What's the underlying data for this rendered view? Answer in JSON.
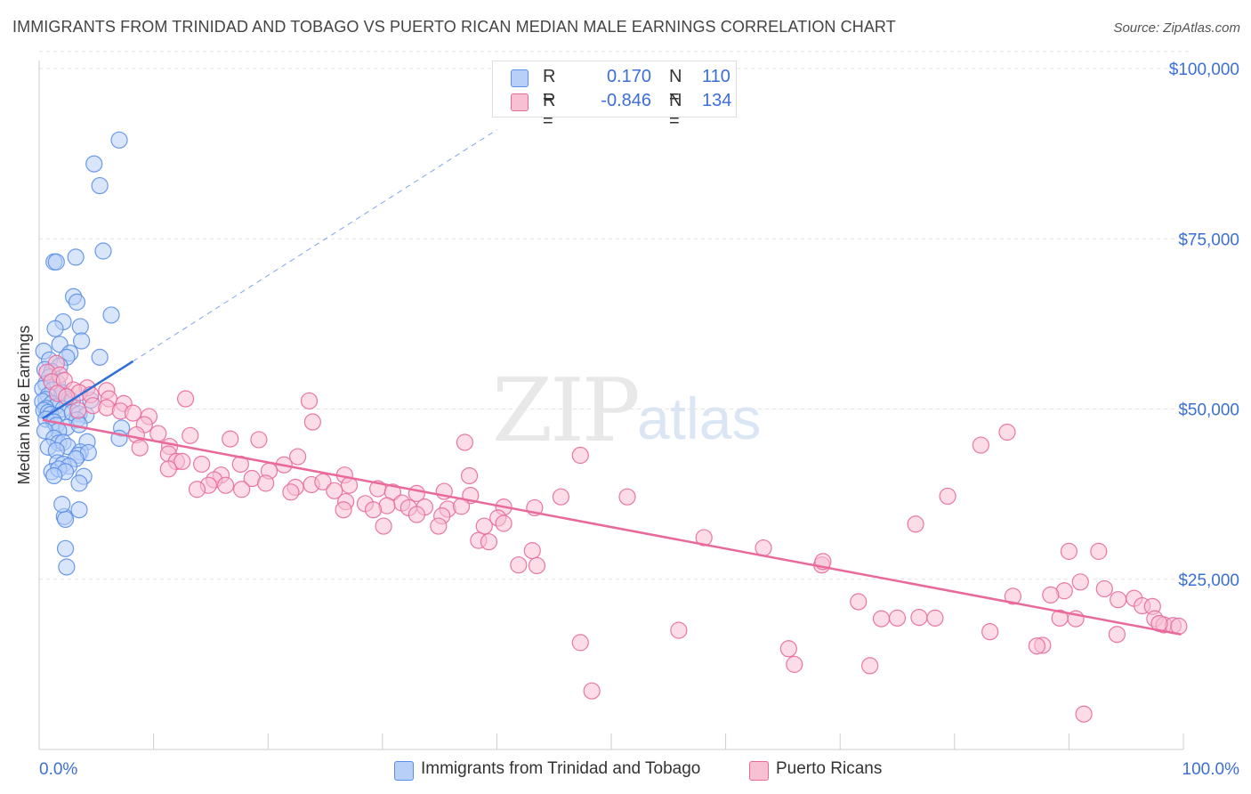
{
  "title": "IMMIGRANTS FROM TRINIDAD AND TOBAGO VS PUERTO RICAN MEDIAN MALE EARNINGS CORRELATION CHART",
  "source": "Source: ZipAtlas.com",
  "watermark": {
    "zip": "ZIP",
    "atlas": "atlas"
  },
  "colors": {
    "blue": "#5b8ee8",
    "blue_fill": "#b8d0f7",
    "pink": "#e8699a",
    "pink_fill": "#f7c0d3",
    "axis_label": "#3b6fd8"
  },
  "legend": {
    "rows": [
      {
        "r_label": "R =",
        "r_value": "0.170",
        "n_label": "N =",
        "n_value": "110"
      },
      {
        "r_label": "R =",
        "r_value": "-0.846",
        "n_label": "N =",
        "n_value": "134"
      }
    ]
  },
  "bottom_legend": [
    {
      "label": "Immigrants from Trinidad and Tobago"
    },
    {
      "label": "Puerto Ricans"
    }
  ],
  "chart_data": {
    "type": "scatter",
    "title": "IMMIGRANTS FROM TRINIDAD AND TOBAGO VS PUERTO RICAN MEDIAN MALE EARNINGS CORRELATION CHART",
    "xlabel": "",
    "ylabel": "Median Male Earnings",
    "xlim": [
      0,
      100
    ],
    "ylim": [
      0,
      105000
    ],
    "x_tick_labels": [
      "0.0%",
      "100.0%"
    ],
    "y_ticks": [
      25000,
      50000,
      75000,
      100000
    ],
    "y_tick_labels": [
      "$25,000",
      "$50,000",
      "$75,000",
      "$100,000"
    ],
    "grid": true,
    "series": [
      {
        "name": "Immigrants from Trinidad and Tobago",
        "color": "#5b8ee8",
        "trend": {
          "x": [
            0.3,
            8.2
          ],
          "y": [
            48600,
            57000
          ],
          "extended_to": [
            40,
            91000
          ]
        },
        "points": [
          [
            7.0,
            89500
          ],
          [
            4.8,
            86000
          ],
          [
            5.3,
            82800
          ],
          [
            5.6,
            73200
          ],
          [
            3.2,
            72300
          ],
          [
            1.3,
            71600
          ],
          [
            1.5,
            71600
          ],
          [
            3.0,
            66500
          ],
          [
            3.3,
            65700
          ],
          [
            6.3,
            63800
          ],
          [
            2.1,
            62800
          ],
          [
            1.4,
            61800
          ],
          [
            3.6,
            62100
          ],
          [
            3.7,
            60000
          ],
          [
            1.8,
            59500
          ],
          [
            0.4,
            58500
          ],
          [
            0.9,
            57200
          ],
          [
            2.7,
            58200
          ],
          [
            2.4,
            57600
          ],
          [
            5.3,
            57600
          ],
          [
            1.8,
            56300
          ],
          [
            0.5,
            55800
          ],
          [
            1.1,
            55500
          ],
          [
            0.9,
            54700
          ],
          [
            1.6,
            53800
          ],
          [
            0.6,
            53700
          ],
          [
            0.3,
            53000
          ],
          [
            1.2,
            52800
          ],
          [
            2.0,
            52400
          ],
          [
            0.8,
            52000
          ],
          [
            0.6,
            51400
          ],
          [
            0.3,
            51100
          ],
          [
            2.6,
            51500
          ],
          [
            2.9,
            51200
          ],
          [
            4.5,
            51300
          ],
          [
            1.1,
            50800
          ],
          [
            1.4,
            50300
          ],
          [
            0.6,
            50100
          ],
          [
            2.1,
            50000
          ],
          [
            0.4,
            49800
          ],
          [
            0.8,
            49500
          ],
          [
            1.0,
            49200
          ],
          [
            1.6,
            49000
          ],
          [
            2.9,
            49500
          ],
          [
            3.5,
            49300
          ],
          [
            4.1,
            49100
          ],
          [
            0.6,
            48500
          ],
          [
            1.3,
            48100
          ],
          [
            3.3,
            48400
          ],
          [
            1.5,
            47600
          ],
          [
            2.4,
            47300
          ],
          [
            1.7,
            46800
          ],
          [
            0.5,
            46800
          ],
          [
            7.2,
            47200
          ],
          [
            3.5,
            47700
          ],
          [
            7.0,
            45700
          ],
          [
            1.3,
            45700
          ],
          [
            1.7,
            45000
          ],
          [
            2.1,
            45100
          ],
          [
            4.2,
            45200
          ],
          [
            2.5,
            44500
          ],
          [
            0.8,
            44400
          ],
          [
            1.5,
            43900
          ],
          [
            3.6,
            43700
          ],
          [
            3.4,
            43200
          ],
          [
            4.3,
            43600
          ],
          [
            3.2,
            42700
          ],
          [
            1.6,
            42100
          ],
          [
            2.1,
            41900
          ],
          [
            2.6,
            41600
          ],
          [
            1.1,
            40800
          ],
          [
            1.7,
            41200
          ],
          [
            2.3,
            40800
          ],
          [
            1.3,
            40200
          ],
          [
            3.9,
            40100
          ],
          [
            3.5,
            39100
          ],
          [
            3.5,
            35200
          ],
          [
            2.2,
            34200
          ],
          [
            2.3,
            33800
          ],
          [
            2.0,
            36000
          ],
          [
            2.3,
            29500
          ],
          [
            2.4,
            26800
          ]
        ]
      },
      {
        "name": "Puerto Ricans",
        "color": "#e8699a",
        "trend": {
          "x": [
            0.3,
            99.8
          ],
          "y": [
            48400,
            16900
          ]
        },
        "points": [
          [
            1.5,
            56700
          ],
          [
            0.7,
            55400
          ],
          [
            1.8,
            55000
          ],
          [
            1.1,
            54000
          ],
          [
            2.2,
            54200
          ],
          [
            4.2,
            53100
          ],
          [
            3.0,
            52800
          ],
          [
            1.6,
            52300
          ],
          [
            5.9,
            52700
          ],
          [
            3.5,
            52400
          ],
          [
            4.5,
            52100
          ],
          [
            2.4,
            51800
          ],
          [
            6.1,
            51500
          ],
          [
            7.4,
            50800
          ],
          [
            12.8,
            51500
          ],
          [
            23.6,
            51200
          ],
          [
            4.7,
            50500
          ],
          [
            5.9,
            50200
          ],
          [
            3.4,
            49800
          ],
          [
            7.1,
            49700
          ],
          [
            8.2,
            49400
          ],
          [
            9.6,
            48900
          ],
          [
            23.9,
            48100
          ],
          [
            9.2,
            47700
          ],
          [
            10.4,
            46400
          ],
          [
            8.5,
            46200
          ],
          [
            13.2,
            46100
          ],
          [
            16.7,
            45600
          ],
          [
            19.2,
            45500
          ],
          [
            37.2,
            45100
          ],
          [
            11.4,
            44500
          ],
          [
            8.8,
            44300
          ],
          [
            11.3,
            43400
          ],
          [
            22.6,
            43000
          ],
          [
            47.3,
            43200
          ],
          [
            82.3,
            44700
          ],
          [
            12.0,
            42300
          ],
          [
            12.5,
            42300
          ],
          [
            14.2,
            41900
          ],
          [
            17.6,
            41900
          ],
          [
            21.4,
            41800
          ],
          [
            20.1,
            40900
          ],
          [
            11.3,
            41200
          ],
          [
            15.9,
            40300
          ],
          [
            18.6,
            39800
          ],
          [
            15.3,
            39600
          ],
          [
            26.7,
            40300
          ],
          [
            37.6,
            40200
          ],
          [
            14.8,
            38800
          ],
          [
            16.3,
            38800
          ],
          [
            19.8,
            39100
          ],
          [
            22.4,
            38500
          ],
          [
            23.8,
            38900
          ],
          [
            24.8,
            39300
          ],
          [
            27.1,
            38800
          ],
          [
            29.6,
            38300
          ],
          [
            35.4,
            37900
          ],
          [
            13.8,
            38200
          ],
          [
            17.7,
            38200
          ],
          [
            22.0,
            37800
          ],
          [
            25.8,
            38000
          ],
          [
            30.9,
            37800
          ],
          [
            33.0,
            37600
          ],
          [
            37.7,
            37300
          ],
          [
            26.8,
            36400
          ],
          [
            31.7,
            36200
          ],
          [
            28.5,
            36100
          ],
          [
            30.4,
            35800
          ],
          [
            32.3,
            35500
          ],
          [
            33.7,
            35600
          ],
          [
            35.7,
            35300
          ],
          [
            36.9,
            35700
          ],
          [
            40.6,
            35600
          ],
          [
            43.3,
            35500
          ],
          [
            45.6,
            37100
          ],
          [
            51.4,
            37100
          ],
          [
            26.6,
            35200
          ],
          [
            29.2,
            35200
          ],
          [
            33.0,
            34500
          ],
          [
            35.2,
            34300
          ],
          [
            40.1,
            34000
          ],
          [
            30.1,
            32800
          ],
          [
            34.9,
            32800
          ],
          [
            38.9,
            32800
          ],
          [
            40.6,
            33200
          ],
          [
            38.4,
            30700
          ],
          [
            39.3,
            30500
          ],
          [
            43.1,
            29200
          ],
          [
            41.9,
            27100
          ],
          [
            43.5,
            27000
          ],
          [
            58.1,
            31100
          ],
          [
            63.3,
            29600
          ],
          [
            68.4,
            27100
          ],
          [
            68.5,
            27600
          ],
          [
            76.6,
            33100
          ],
          [
            79.4,
            37200
          ],
          [
            84.6,
            46600
          ],
          [
            90.0,
            29100
          ],
          [
            92.6,
            29100
          ],
          [
            93.1,
            23600
          ],
          [
            89.6,
            23300
          ],
          [
            91.0,
            24600
          ],
          [
            94.3,
            22000
          ],
          [
            95.7,
            22200
          ],
          [
            96.4,
            21100
          ],
          [
            97.3,
            21000
          ],
          [
            88.4,
            22700
          ],
          [
            85.1,
            22500
          ],
          [
            71.6,
            21700
          ],
          [
            75.0,
            19300
          ],
          [
            73.6,
            19200
          ],
          [
            76.9,
            19400
          ],
          [
            78.3,
            19300
          ],
          [
            89.2,
            19300
          ],
          [
            90.6,
            19200
          ],
          [
            97.5,
            19200
          ],
          [
            98.3,
            18300
          ],
          [
            99.1,
            18200
          ],
          [
            99.6,
            18100
          ],
          [
            97.9,
            18500
          ],
          [
            55.9,
            17500
          ],
          [
            83.1,
            17300
          ],
          [
            87.7,
            15300
          ],
          [
            87.2,
            15200
          ],
          [
            94.2,
            16900
          ],
          [
            65.5,
            14800
          ],
          [
            66.0,
            12500
          ],
          [
            72.6,
            12300
          ],
          [
            47.3,
            15700
          ],
          [
            48.3,
            8600
          ],
          [
            91.3,
            5200
          ]
        ]
      }
    ]
  }
}
